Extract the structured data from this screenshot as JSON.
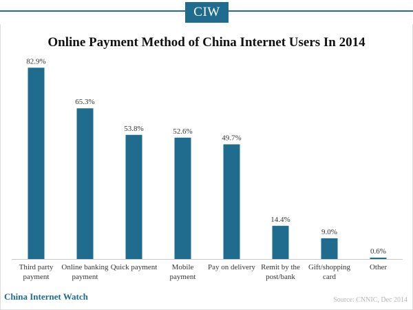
{
  "header": {
    "logo_text": "CIW"
  },
  "footer": {
    "brand": "China Internet Watch",
    "source": "Source: CNNIC, Dec 2014"
  },
  "colors": {
    "accent": "#1f6c8f",
    "bar": "#1f6c8f"
  },
  "chart_data": {
    "type": "bar",
    "title": "Online Payment Method of China Internet Users In 2014",
    "categories": [
      [
        "Third party",
        "payment"
      ],
      [
        "Online banking",
        "payment"
      ],
      [
        "Quick payment"
      ],
      [
        "Mobile",
        "payment"
      ],
      [
        "Pay on delivery"
      ],
      [
        "Remit by the",
        "post/bank"
      ],
      [
        "Gift/shopping",
        "card"
      ],
      [
        "Other"
      ]
    ],
    "values": [
      82.9,
      65.3,
      53.8,
      52.6,
      49.7,
      14.4,
      9.0,
      0.6
    ],
    "data_labels": [
      "82.9%",
      "65.3%",
      "53.8%",
      "52.6%",
      "49.7%",
      "14.4%",
      "9.0%",
      "0.6%"
    ],
    "ylim": [
      0,
      100
    ],
    "grid": false,
    "xlabel": "",
    "ylabel": ""
  }
}
